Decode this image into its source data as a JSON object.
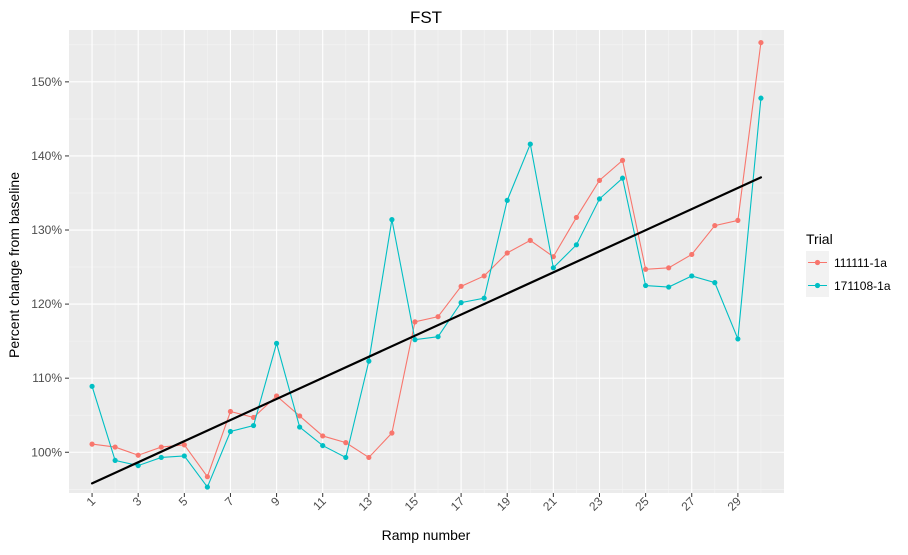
{
  "chart_data": {
    "type": "line",
    "title": "FST",
    "xlabel": "Ramp number",
    "ylabel": "Percent change from baseline",
    "x": [
      1,
      2,
      3,
      4,
      5,
      6,
      7,
      8,
      9,
      10,
      11,
      12,
      13,
      14,
      15,
      16,
      17,
      18,
      19,
      20,
      21,
      22,
      23,
      24,
      25,
      26,
      27,
      28,
      29,
      30
    ],
    "x_ticks": [
      1,
      3,
      5,
      7,
      9,
      11,
      13,
      15,
      17,
      19,
      21,
      23,
      25,
      27,
      29
    ],
    "x_tick_labels": [
      "1",
      "3",
      "5",
      "7",
      "9",
      "11",
      "13",
      "15",
      "17",
      "19",
      "21",
      "23",
      "25",
      "27",
      "29"
    ],
    "xlim": [
      0,
      31
    ],
    "y_ticks": [
      100,
      110,
      120,
      130,
      140,
      150
    ],
    "y_tick_labels": [
      "100%",
      "110%",
      "120%",
      "130%",
      "140%",
      "150%"
    ],
    "ylim": [
      94.5,
      157
    ],
    "grid": true,
    "legend": {
      "title": "Trial",
      "position": "right"
    },
    "series": [
      {
        "name": "111111-1a",
        "color": "#F8766D",
        "values": [
          101.1,
          100.7,
          99.6,
          100.7,
          101.0,
          96.7,
          105.5,
          104.7,
          107.6,
          104.9,
          102.2,
          101.3,
          99.3,
          102.6,
          117.6,
          118.3,
          122.4,
          123.8,
          126.9,
          128.6,
          126.4,
          131.7,
          136.7,
          139.4,
          124.7,
          124.9,
          126.7,
          130.6,
          131.3,
          155.3
        ]
      },
      {
        "name": "171108-1a",
        "color": "#00BFC4",
        "values": [
          108.9,
          98.9,
          98.2,
          99.3,
          99.5,
          95.3,
          102.8,
          103.6,
          114.7,
          103.4,
          100.9,
          99.3,
          112.3,
          131.4,
          115.2,
          115.6,
          120.2,
          120.8,
          134.0,
          141.6,
          124.9,
          128.0,
          134.2,
          137.0,
          122.5,
          122.3,
          123.8,
          122.9,
          115.3,
          147.8
        ]
      }
    ],
    "trendline": {
      "color": "#000000",
      "x": [
        1,
        30
      ],
      "y": [
        95.8,
        137.1
      ]
    }
  }
}
